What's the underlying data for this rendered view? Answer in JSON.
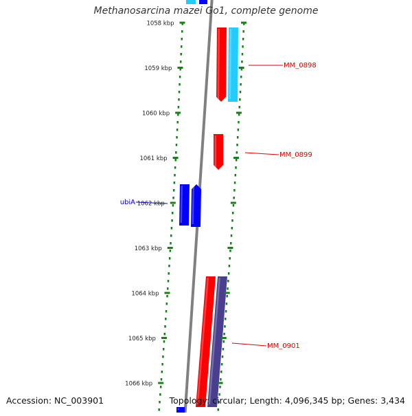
{
  "title": "Methanosarcina mazei Go1, complete genome",
  "footer": {
    "accession": "Accession: NC_003901",
    "summary": "Topology: circular; Length: 4,096,345 bp; Genes: 3,434"
  },
  "map": {
    "ticks": [
      {
        "label": "1058 kbp",
        "kbp": 1058
      },
      {
        "label": "1059 kbp",
        "kbp": 1059
      },
      {
        "label": "1060 kbp",
        "kbp": 1060
      },
      {
        "label": "1061 kbp",
        "kbp": 1061
      },
      {
        "label": "1062 kbp",
        "kbp": 1062
      },
      {
        "label": "1063 kbp",
        "kbp": 1063
      },
      {
        "label": "1064 kbp",
        "kbp": 1064
      },
      {
        "label": "1065 kbp",
        "kbp": 1065
      },
      {
        "label": "1066 kbp",
        "kbp": 1066
      }
    ],
    "labels": [
      {
        "text": "MM_0898",
        "color": "#dd0000"
      },
      {
        "text": "MM_0899",
        "color": "#dd0000"
      },
      {
        "text": "ubiA",
        "color": "#0000cc"
      },
      {
        "text": "MM_0901",
        "color": "#dd0000"
      }
    ],
    "colors": {
      "ruler": "#1a7f1a",
      "backbone": "#808080",
      "red_feature": "#ff0000",
      "cyan_feature": "#22ccff",
      "blue_feature": "#0000ff",
      "purple_feature": "#4a3f8f"
    }
  }
}
